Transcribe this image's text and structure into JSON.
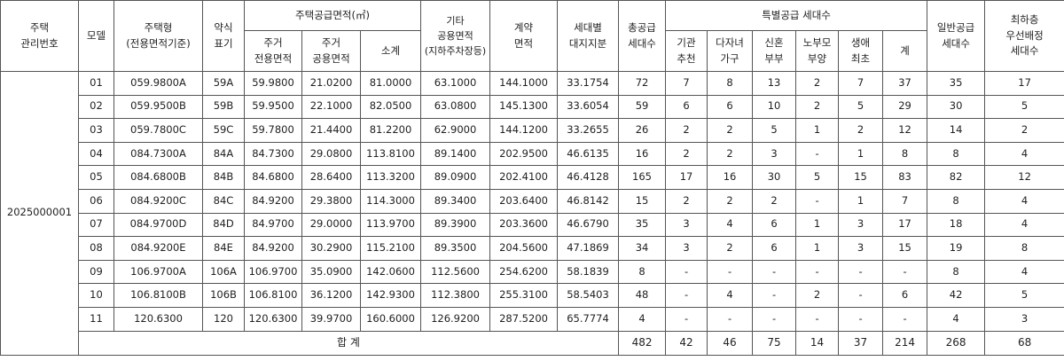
{
  "table": {
    "header_top": [
      "주택\n관리번호",
      "모델",
      "주택형\n(전용면적기준)",
      "약식\n표기",
      "주택공급면적(㎡)",
      "기타\n공용면적\n(지하주차장등)",
      "계약\n면적",
      "세대별\n대지지분",
      "총공급\n세대수",
      "특별공급  세대수",
      "일반공급\n세대수",
      "최하층\n우선배정\n세대수"
    ],
    "header_sub": [
      "주거\n전용면적",
      "주거\n공용면적",
      "소계",
      "기관\n추천",
      "다자녀\n가구",
      "신혼\n부부",
      "노부모\n부양",
      "생애\n최초",
      "계"
    ],
    "group_id": "2025000001",
    "rows": [
      [
        "01",
        "059.9800A",
        "59A",
        "59.9800",
        "21.0200",
        "81.0000",
        "63.1000",
        "144.1000",
        "33.1754",
        "72",
        "7",
        "8",
        "13",
        "2",
        "7",
        "37",
        "35",
        "17"
      ],
      [
        "02",
        "059.9500B",
        "59B",
        "59.9500",
        "22.1000",
        "82.0500",
        "63.0800",
        "145.1300",
        "33.6054",
        "59",
        "6",
        "6",
        "10",
        "2",
        "5",
        "29",
        "30",
        "5"
      ],
      [
        "03",
        "059.7800C",
        "59C",
        "59.7800",
        "21.4400",
        "81.2200",
        "62.9000",
        "144.1200",
        "33.2655",
        "26",
        "2",
        "2",
        "5",
        "1",
        "2",
        "12",
        "14",
        "2"
      ],
      [
        "04",
        "084.7300A",
        "84A",
        "84.7300",
        "29.0800",
        "113.8100",
        "89.1400",
        "202.9500",
        "46.6135",
        "16",
        "2",
        "2",
        "3",
        "-",
        "1",
        "8",
        "8",
        "4"
      ],
      [
        "05",
        "084.6800B",
        "84B",
        "84.6800",
        "28.6400",
        "113.3200",
        "89.0900",
        "202.4100",
        "46.4128",
        "165",
        "17",
        "16",
        "30",
        "5",
        "15",
        "83",
        "82",
        "12"
      ],
      [
        "06",
        "084.9200C",
        "84C",
        "84.9200",
        "29.3800",
        "114.3000",
        "89.3400",
        "203.6400",
        "46.8142",
        "15",
        "2",
        "2",
        "2",
        "-",
        "1",
        "7",
        "8",
        "4"
      ],
      [
        "07",
        "084.9700D",
        "84D",
        "84.9700",
        "29.0000",
        "113.9700",
        "89.3900",
        "203.3600",
        "46.6790",
        "35",
        "3",
        "4",
        "6",
        "1",
        "3",
        "17",
        "18",
        "4"
      ],
      [
        "08",
        "084.9200E",
        "84E",
        "84.9200",
        "30.2900",
        "115.2100",
        "89.3500",
        "204.5600",
        "47.1869",
        "34",
        "3",
        "2",
        "6",
        "1",
        "3",
        "15",
        "19",
        "8"
      ],
      [
        "09",
        "106.9700A",
        "106A",
        "106.9700",
        "35.0900",
        "142.0600",
        "112.5600",
        "254.6200",
        "58.1839",
        "8",
        "-",
        "-",
        "-",
        "-",
        "-",
        "-",
        "8",
        "4"
      ],
      [
        "10",
        "106.8100B",
        "106B",
        "106.8100",
        "36.1200",
        "142.9300",
        "112.3800",
        "255.3100",
        "58.5403",
        "48",
        "-",
        "4",
        "-",
        "2",
        "-",
        "6",
        "42",
        "5"
      ],
      [
        "11",
        "120.6300",
        "120",
        "120.6300",
        "39.9700",
        "160.6000",
        "126.9200",
        "287.5200",
        "65.7774",
        "4",
        "-",
        "-",
        "-",
        "-",
        "-",
        "-",
        "4",
        "3"
      ]
    ],
    "total_label": "합 계",
    "total_values": [
      "482",
      "42",
      "46",
      "75",
      "14",
      "37",
      "214",
      "268",
      "68"
    ]
  }
}
